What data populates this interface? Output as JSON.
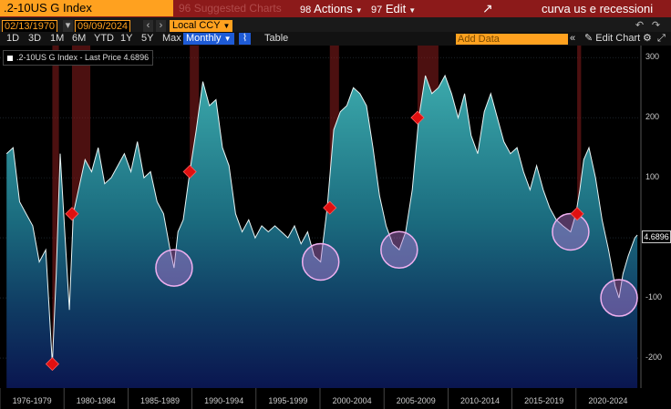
{
  "toolbar": {
    "ticker": ".2-10US G Index",
    "suggested": "Suggested Charts",
    "suggested_key": "96",
    "actions_key": "98",
    "actions": "Actions",
    "edit_key": "97",
    "edit": "Edit",
    "chart_title": "curva us e recessioni"
  },
  "range": {
    "start_date": "02/13/1970",
    "end_date": "09/09/2024",
    "currency": "Local CCY"
  },
  "periods": [
    "1D",
    "3D",
    "1M",
    "6M",
    "YTD",
    "1Y",
    "5Y",
    "Max"
  ],
  "frequency": "Monthly",
  "table_label": "Table",
  "add_data_placeholder": "Add Data",
  "edit_chart_label": "Edit Chart",
  "legend": ".2-10US G Index - Last Price 4.6896",
  "last_price": "4.6896",
  "colors": {
    "accent": "#ffa11f",
    "header": "#8c1a1a",
    "active": "#1e5bd6",
    "recession": "#8a1e1e"
  },
  "chart_data": {
    "type": "area",
    "title": "",
    "xlabel": "",
    "ylabel": "",
    "ylim": [
      -250,
      320
    ],
    "yticks": [
      300,
      200,
      100,
      0,
      -100,
      -200
    ],
    "xtick_labels": [
      "1976-1979",
      "1980-1984",
      "1985-1989",
      "1990-1994",
      "1995-1999",
      "2000-2004",
      "2005-2009",
      "2010-2014",
      "2015-2019",
      "2020-2024"
    ],
    "last_value": 4.6896,
    "recessions": [
      [
        1980.0,
        1980.5
      ],
      [
        1981.5,
        1982.9
      ],
      [
        1990.5,
        1991.2
      ],
      [
        2001.2,
        2001.9
      ],
      [
        2007.9,
        2009.5
      ],
      [
        2020.1,
        2020.4
      ]
    ],
    "highlighted_troughs": [
      1989.3,
      2000.5,
      2006.5,
      2019.6,
      2023.3
    ],
    "series": [
      {
        "x": [
          1976.5,
          1977.0,
          1977.5,
          1978.0,
          1978.5,
          1979.0,
          1979.5,
          1980.0,
          1980.3,
          1980.6,
          1981.0,
          1981.3,
          1981.6,
          1982.0,
          1982.5,
          1983.0,
          1983.5,
          1984.0,
          1984.5,
          1985.0,
          1985.5,
          1986.0,
          1986.5,
          1987.0,
          1987.5,
          1988.0,
          1988.5,
          1989.0,
          1989.3,
          1989.6,
          1990.0,
          1990.5,
          1991.0,
          1991.5,
          1992.0,
          1992.5,
          1993.0,
          1993.5,
          1994.0,
          1994.5,
          1995.0,
          1995.5,
          1996.0,
          1996.5,
          1997.0,
          1997.5,
          1998.0,
          1998.5,
          1999.0,
          1999.5,
          2000.0,
          2000.5,
          2001.0,
          2001.5,
          2002.0,
          2002.5,
          2003.0,
          2003.5,
          2004.0,
          2004.5,
          2005.0,
          2005.5,
          2006.0,
          2006.5,
          2007.0,
          2007.5,
          2008.0,
          2008.5,
          2009.0,
          2009.5,
          2010.0,
          2010.5,
          2011.0,
          2011.5,
          2012.0,
          2012.5,
          2013.0,
          2013.5,
          2014.0,
          2014.5,
          2015.0,
          2015.5,
          2016.0,
          2016.5,
          2017.0,
          2017.5,
          2018.0,
          2018.5,
          2019.0,
          2019.6,
          2020.0,
          2020.3,
          2020.6,
          2021.0,
          2021.5,
          2022.0,
          2022.5,
          2023.0,
          2023.3,
          2023.6,
          2024.0,
          2024.5,
          2024.7
        ],
        "values": [
          140,
          150,
          60,
          40,
          20,
          -40,
          -20,
          -210,
          -60,
          140,
          -10,
          -120,
          40,
          80,
          130,
          110,
          150,
          90,
          100,
          120,
          140,
          110,
          160,
          100,
          110,
          60,
          40,
          -20,
          -50,
          10,
          30,
          110,
          180,
          260,
          220,
          230,
          150,
          120,
          40,
          10,
          30,
          0,
          20,
          10,
          20,
          10,
          0,
          20,
          -10,
          10,
          -30,
          -40,
          50,
          180,
          210,
          220,
          250,
          240,
          220,
          150,
          70,
          20,
          -10,
          -20,
          10,
          80,
          200,
          270,
          240,
          250,
          270,
          240,
          200,
          240,
          170,
          140,
          210,
          240,
          200,
          160,
          140,
          150,
          110,
          80,
          120,
          80,
          50,
          30,
          20,
          10,
          40,
          80,
          130,
          150,
          100,
          30,
          -20,
          -80,
          -100,
          -60,
          -30,
          0,
          4.69
        ]
      }
    ]
  }
}
